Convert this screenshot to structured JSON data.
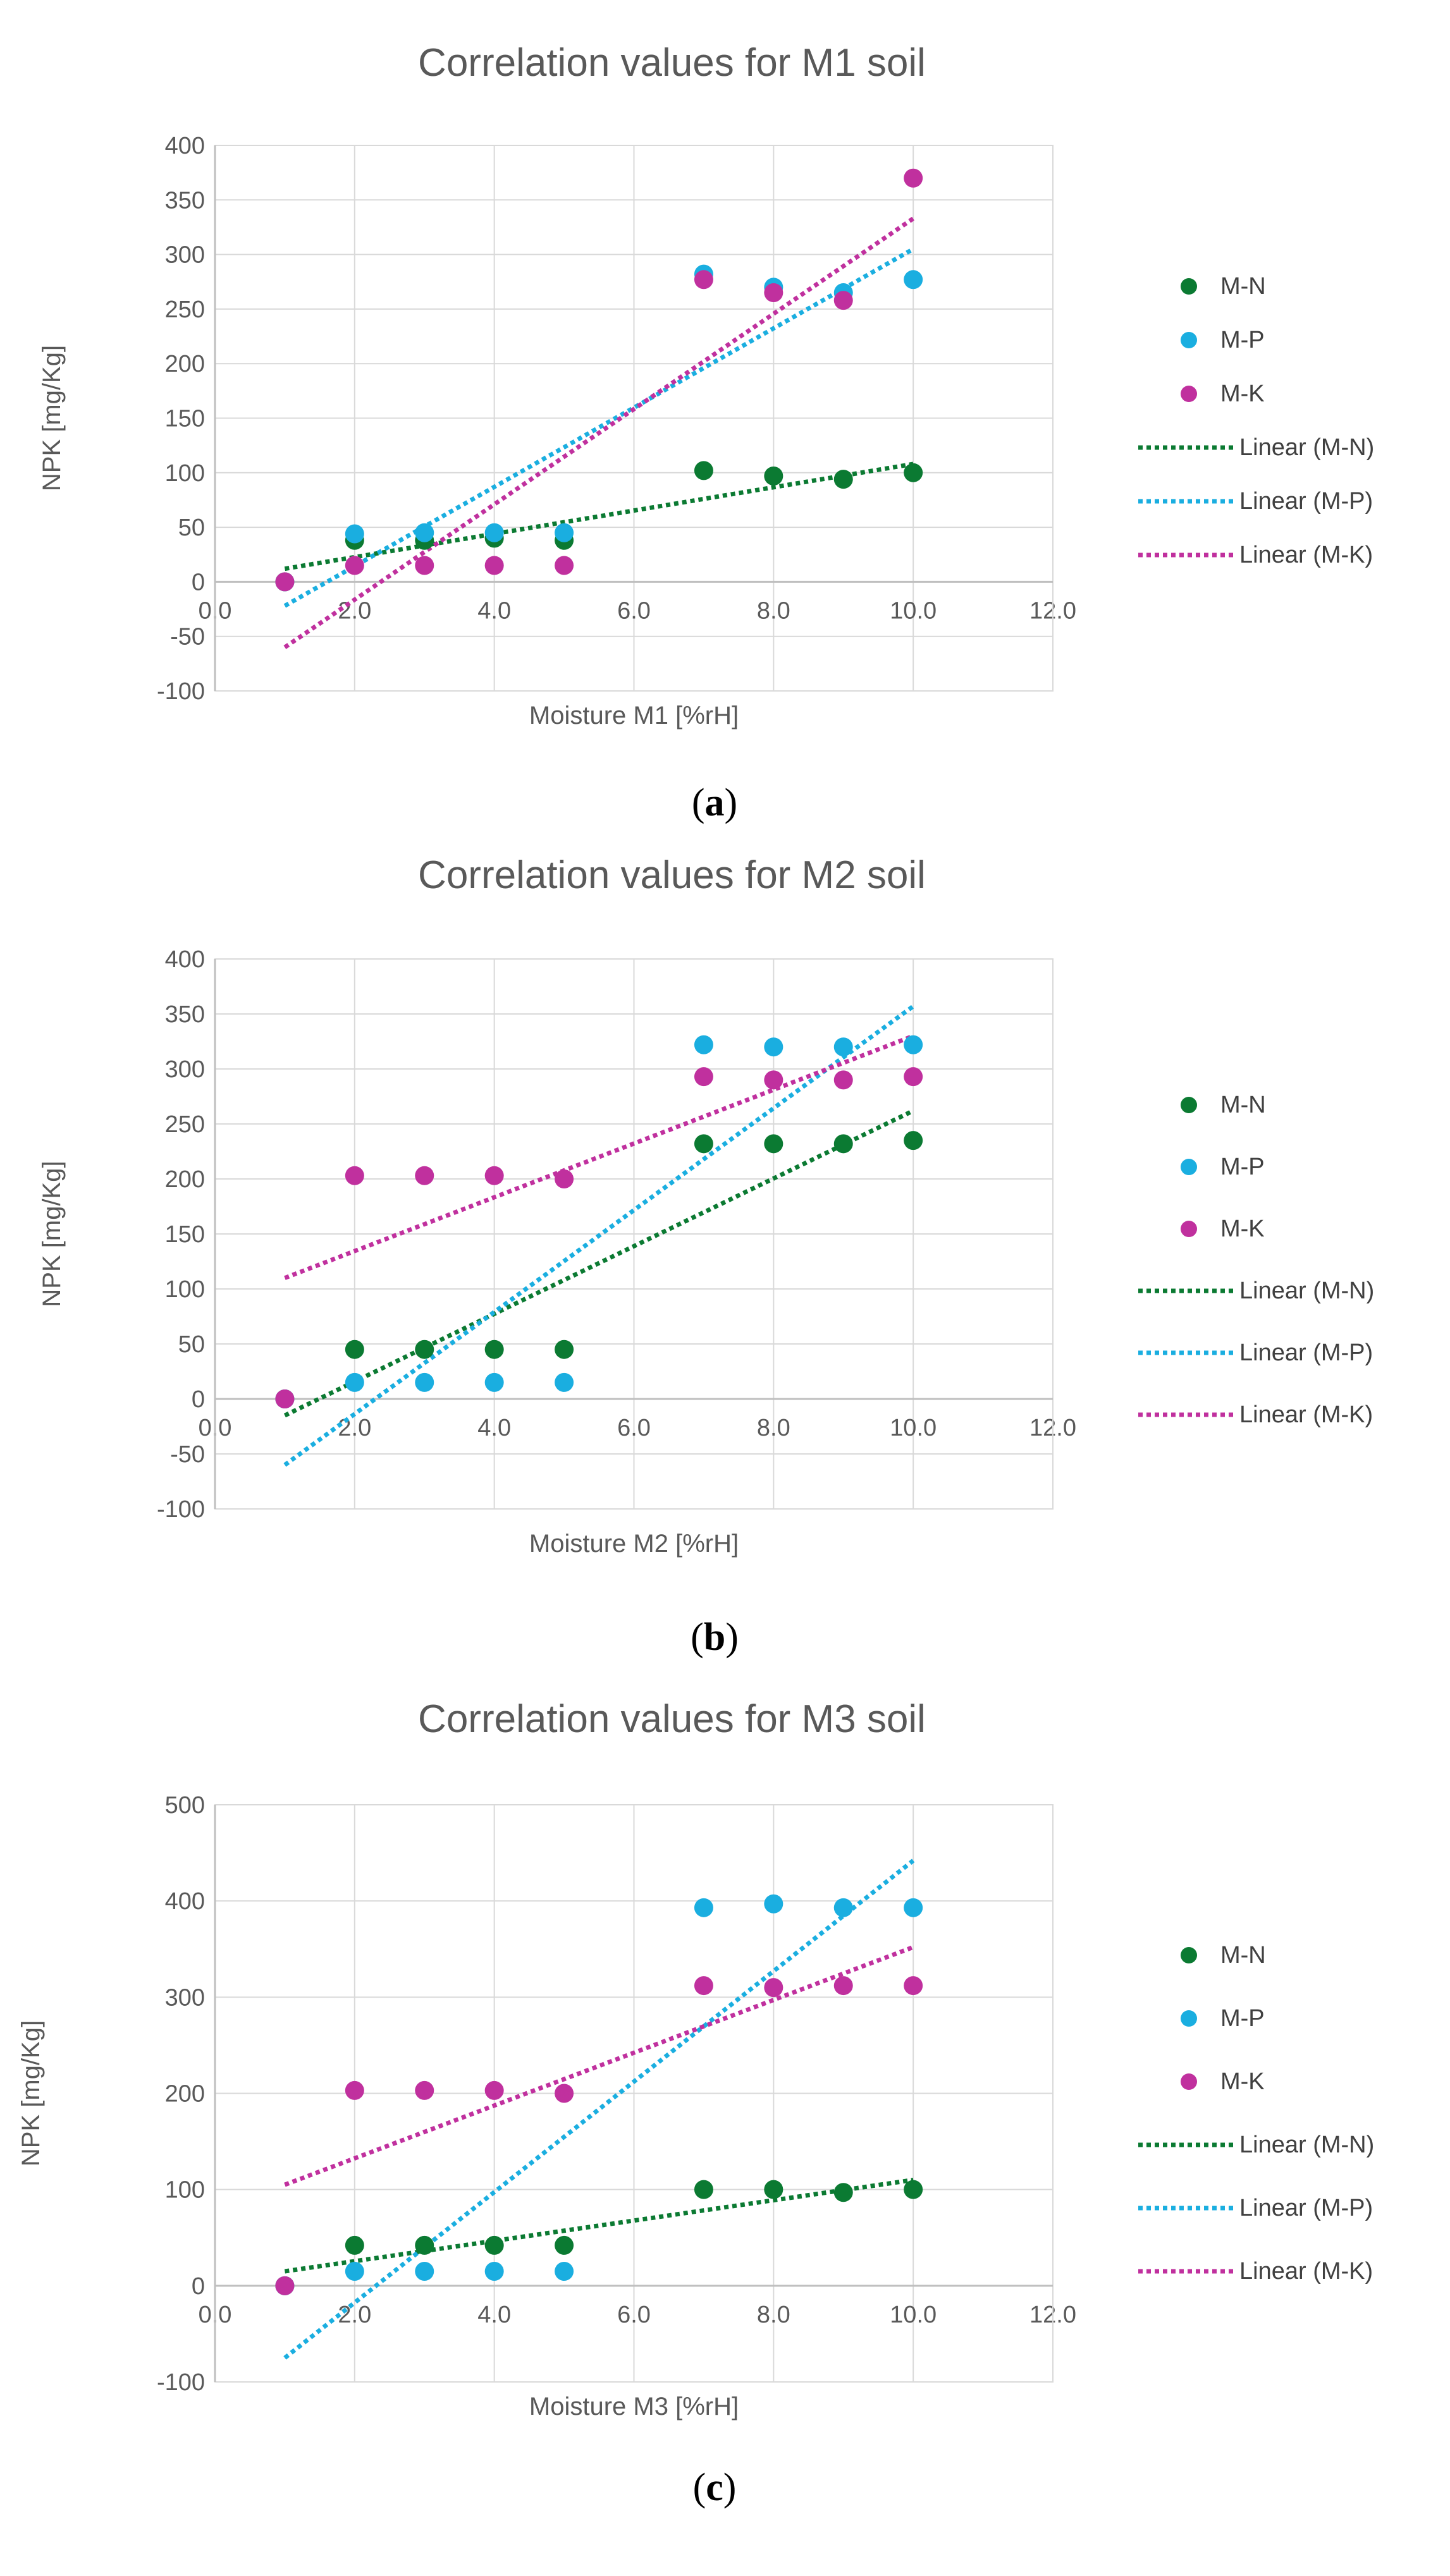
{
  "colors": {
    "M-N": "#0b7a32",
    "M-P": "#1aaee0",
    "M-K": "#c0309e"
  },
  "chart_data": [
    {
      "type": "scatter",
      "title": "Correlation values for M1 soil",
      "xlabel": "Moisture  M1 [%rH]",
      "ylabel": "NPK [mg/Kg]",
      "xlim": [
        0,
        12
      ],
      "ylim": [
        -100,
        400
      ],
      "xticks": [
        "0.0",
        "2.0",
        "4.0",
        "6.0",
        "8.0",
        "10.0",
        "12.0"
      ],
      "yticks": [
        "-100",
        "-50",
        "0",
        "50",
        "100",
        "150",
        "200",
        "250",
        "300",
        "350",
        "400"
      ],
      "caption": {
        "open": "(",
        "letter": "a",
        "close": ")"
      },
      "series": [
        {
          "name": "M-N",
          "x": [
            1,
            2,
            3,
            4,
            5,
            7,
            8,
            9,
            10
          ],
          "y": [
            0,
            38,
            38,
            40,
            38,
            102,
            97,
            94,
            100
          ]
        },
        {
          "name": "M-P",
          "x": [
            1,
            2,
            3,
            4,
            5,
            7,
            8,
            9,
            10
          ],
          "y": [
            0,
            44,
            45,
            45,
            45,
            282,
            270,
            265,
            277
          ]
        },
        {
          "name": "M-K",
          "x": [
            1,
            2,
            3,
            4,
            5,
            7,
            8,
            9,
            10
          ],
          "y": [
            0,
            15,
            15,
            15,
            15,
            277,
            265,
            258,
            370
          ]
        }
      ],
      "trendlines": [
        {
          "name": "Linear (M-N)",
          "of": "M-N",
          "from": [
            1,
            12
          ],
          "to": [
            10,
            108
          ]
        },
        {
          "name": "Linear (M-P)",
          "of": "M-P",
          "from": [
            1,
            -22
          ],
          "to": [
            10,
            305
          ]
        },
        {
          "name": "Linear (M-K)",
          "of": "M-K",
          "from": [
            1,
            -60
          ],
          "to": [
            10,
            333
          ]
        }
      ]
    },
    {
      "type": "scatter",
      "title": "Correlation values for M2 soil",
      "xlabel": "Moisture  M2 [%rH]",
      "ylabel": "NPK [mg/Kg]",
      "xlim": [
        0,
        12
      ],
      "ylim": [
        -100,
        400
      ],
      "xticks": [
        "0.0",
        "2.0",
        "4.0",
        "6.0",
        "8.0",
        "10.0",
        "12.0"
      ],
      "yticks": [
        "-100",
        "-50",
        "0",
        "50",
        "100",
        "150",
        "200",
        "250",
        "300",
        "350",
        "400"
      ],
      "caption": {
        "open": "(",
        "letter": "b",
        "close": ")"
      },
      "series": [
        {
          "name": "M-N",
          "x": [
            1,
            2,
            3,
            4,
            5,
            7,
            8,
            9,
            10
          ],
          "y": [
            0,
            45,
            45,
            45,
            45,
            232,
            232,
            232,
            235
          ]
        },
        {
          "name": "M-P",
          "x": [
            1,
            2,
            3,
            4,
            5,
            7,
            8,
            9,
            10
          ],
          "y": [
            0,
            15,
            15,
            15,
            15,
            322,
            320,
            320,
            322
          ]
        },
        {
          "name": "M-K",
          "x": [
            1,
            2,
            3,
            4,
            5,
            7,
            8,
            9,
            10
          ],
          "y": [
            0,
            203,
            203,
            203,
            200,
            293,
            290,
            290,
            293
          ]
        }
      ],
      "trendlines": [
        {
          "name": "Linear (M-N)",
          "of": "M-N",
          "from": [
            1,
            -15
          ],
          "to": [
            10,
            262
          ]
        },
        {
          "name": "Linear (M-P)",
          "of": "M-P",
          "from": [
            1,
            -60
          ],
          "to": [
            10,
            357
          ]
        },
        {
          "name": "Linear (M-K)",
          "of": "M-K",
          "from": [
            1,
            110
          ],
          "to": [
            10,
            330
          ]
        }
      ]
    },
    {
      "type": "scatter",
      "title": "Correlation values for M3 soil",
      "xlabel": "Moisture  M3 [%rH]",
      "ylabel": "NPK [mg/Kg]",
      "xlim": [
        0,
        12
      ],
      "ylim": [
        -100,
        500
      ],
      "xticks": [
        "0.0",
        "2.0",
        "4.0",
        "6.0",
        "8.0",
        "10.0",
        "12.0"
      ],
      "yticks": [
        "-100",
        "0",
        "100",
        "200",
        "300",
        "400",
        "500"
      ],
      "caption": {
        "open": "(",
        "letter": "c",
        "close": ")"
      },
      "series": [
        {
          "name": "M-N",
          "x": [
            1,
            2,
            3,
            4,
            5,
            7,
            8,
            9,
            10
          ],
          "y": [
            0,
            42,
            42,
            42,
            42,
            100,
            100,
            97,
            100
          ]
        },
        {
          "name": "M-P",
          "x": [
            1,
            2,
            3,
            4,
            5,
            7,
            8,
            9,
            10
          ],
          "y": [
            0,
            15,
            15,
            15,
            15,
            393,
            397,
            393,
            393
          ]
        },
        {
          "name": "M-K",
          "x": [
            1,
            2,
            3,
            4,
            5,
            7,
            8,
            9,
            10
          ],
          "y": [
            0,
            203,
            203,
            203,
            200,
            312,
            310,
            312,
            312
          ]
        }
      ],
      "trendlines": [
        {
          "name": "Linear (M-N)",
          "of": "M-N",
          "from": [
            1,
            15
          ],
          "to": [
            10,
            110
          ]
        },
        {
          "name": "Linear (M-P)",
          "of": "M-P",
          "from": [
            1,
            -75
          ],
          "to": [
            10,
            442
          ]
        },
        {
          "name": "Linear (M-K)",
          "of": "M-K",
          "from": [
            1,
            105
          ],
          "to": [
            10,
            352
          ]
        }
      ]
    }
  ]
}
